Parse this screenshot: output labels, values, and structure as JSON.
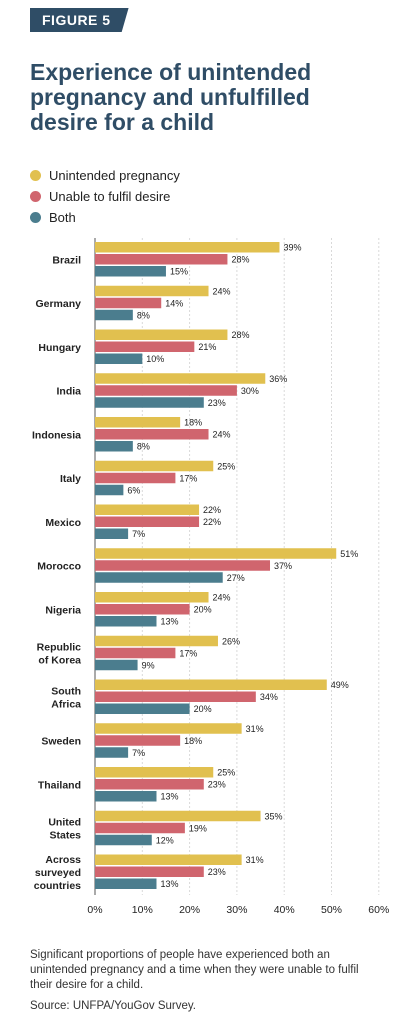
{
  "header": {
    "badge": "FIGURE 5",
    "title": "Experience of unintended pregnancy and unfulfilled desire for a child"
  },
  "footer": {
    "note": "Significant proportions of people have experienced both an unintended pregnancy and a time when they were unable to fulfil their desire for a child.",
    "source": "Source: UNFPA/YouGov Survey."
  },
  "chart_data": {
    "type": "bar",
    "orientation": "horizontal",
    "categories": [
      [
        "Brazil"
      ],
      [
        "Germany"
      ],
      [
        "Hungary"
      ],
      [
        "India"
      ],
      [
        "Indonesia"
      ],
      [
        "Italy"
      ],
      [
        "Mexico"
      ],
      [
        "Morocco"
      ],
      [
        "Nigeria"
      ],
      [
        "Republic",
        "of Korea"
      ],
      [
        "South",
        "Africa"
      ],
      [
        "Sweden"
      ],
      [
        "Thailand"
      ],
      [
        "United",
        "States"
      ],
      [
        "Across",
        "surveyed",
        "countries"
      ]
    ],
    "series": [
      {
        "name": "Unintended pregnancy",
        "color": "#e1c04f",
        "values": [
          39,
          24,
          28,
          36,
          18,
          25,
          22,
          51,
          24,
          26,
          49,
          31,
          25,
          35,
          31
        ]
      },
      {
        "name": "Unable to fulfil desire",
        "color": "#d0656e",
        "values": [
          28,
          14,
          21,
          30,
          24,
          17,
          22,
          37,
          20,
          17,
          34,
          18,
          23,
          19,
          23
        ]
      },
      {
        "name": "Both",
        "color": "#4b7d8e",
        "values": [
          15,
          8,
          10,
          23,
          8,
          6,
          7,
          27,
          13,
          9,
          20,
          7,
          13,
          12,
          13
        ]
      }
    ],
    "value_suffix": "%",
    "xlim": [
      0,
      60
    ],
    "xticks": [
      0,
      10,
      20,
      30,
      40,
      50,
      60
    ],
    "xtick_labels": [
      "0%",
      "10%",
      "20%",
      "30%",
      "40%",
      "50%",
      "60%"
    ],
    "grid": true,
    "legend_position": "top-left"
  }
}
